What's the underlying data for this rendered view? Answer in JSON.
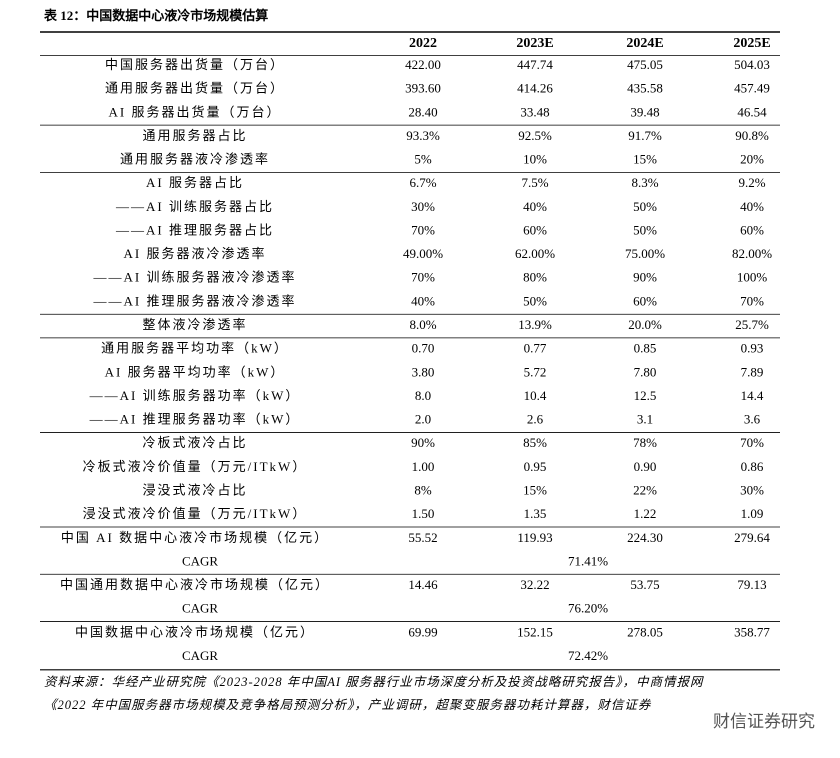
{
  "title": "表 12：中国数据中心液冷市场规模估算",
  "table": {
    "header": [
      "2022",
      "2023E",
      "2024E",
      "2025E"
    ],
    "groups": [
      [
        [
          "中国服务器出货量（万台）",
          "422.00",
          "447.74",
          "475.05",
          "504.03"
        ],
        [
          "通用服务器出货量（万台）",
          "393.60",
          "414.26",
          "435.58",
          "457.49"
        ],
        [
          "AI 服务器出货量（万台）",
          "28.40",
          "33.48",
          "39.48",
          "46.54"
        ]
      ],
      [
        [
          "通用服务器占比",
          "93.3%",
          "92.5%",
          "91.7%",
          "90.8%"
        ],
        [
          "通用服务器液冷渗透率",
          "5%",
          "10%",
          "15%",
          "20%"
        ]
      ],
      [
        [
          "AI 服务器占比",
          "6.7%",
          "7.5%",
          "8.3%",
          "9.2%"
        ],
        [
          "——AI 训练服务器占比",
          "30%",
          "40%",
          "50%",
          "40%"
        ],
        [
          "——AI 推理服务器占比",
          "70%",
          "60%",
          "50%",
          "60%"
        ],
        [
          "AI 服务器液冷渗透率",
          "49.00%",
          "62.00%",
          "75.00%",
          "82.00%"
        ],
        [
          "——AI 训练服务器液冷渗透率",
          "70%",
          "80%",
          "90%",
          "100%"
        ],
        [
          "——AI 推理服务器液冷渗透率",
          "40%",
          "50%",
          "60%",
          "70%"
        ]
      ],
      [
        [
          "整体液冷渗透率",
          "8.0%",
          "13.9%",
          "20.0%",
          "25.7%"
        ]
      ],
      [
        [
          "通用服务器平均功率（kW）",
          "0.70",
          "0.77",
          "0.85",
          "0.93"
        ],
        [
          "AI 服务器平均功率（kW）",
          "3.80",
          "5.72",
          "7.80",
          "7.89"
        ],
        [
          "——AI 训练服务器功率（kW）",
          "8.0",
          "10.4",
          "12.5",
          "14.4"
        ],
        [
          "——AI 推理服务器功率（kW）",
          "2.0",
          "2.6",
          "3.1",
          "3.6"
        ]
      ],
      [
        [
          "冷板式液冷占比",
          "90%",
          "85%",
          "78%",
          "70%"
        ],
        [
          "冷板式液冷价值量（万元/ITkW）",
          "1.00",
          "0.95",
          "0.90",
          "0.86"
        ],
        [
          "浸没式液冷占比",
          "8%",
          "15%",
          "22%",
          "30%"
        ],
        [
          "浸没式液冷价值量（万元/ITkW）",
          "1.50",
          "1.35",
          "1.22",
          "1.09"
        ]
      ],
      [
        [
          "中国 AI 数据中心液冷市场规模（亿元）",
          "55.52",
          "119.93",
          "224.30",
          "279.64"
        ],
        [
          "CAGR",
          "71.41%"
        ]
      ],
      [
        [
          "中国通用数据中心液冷市场规模（亿元）",
          "14.46",
          "32.22",
          "53.75",
          "79.13"
        ],
        [
          "CAGR",
          "76.20%"
        ]
      ],
      [
        [
          "中国数据中心液冷市场规模（亿元）",
          "69.99",
          "152.15",
          "278.05",
          "358.77"
        ],
        [
          "CAGR",
          "72.42%"
        ]
      ]
    ]
  },
  "source": [
    "资料来源：华经产业研究院《2023-2028 年中国AI 服务器行业市场深度分析及投资战略研究报告》，中商情报网",
    "《2022 年中国服务器市场规模及竞争格局预测分析》，产业调研，超聚变服务器功耗计算器，财信证券"
  ],
  "watermark": "财信证券研究"
}
